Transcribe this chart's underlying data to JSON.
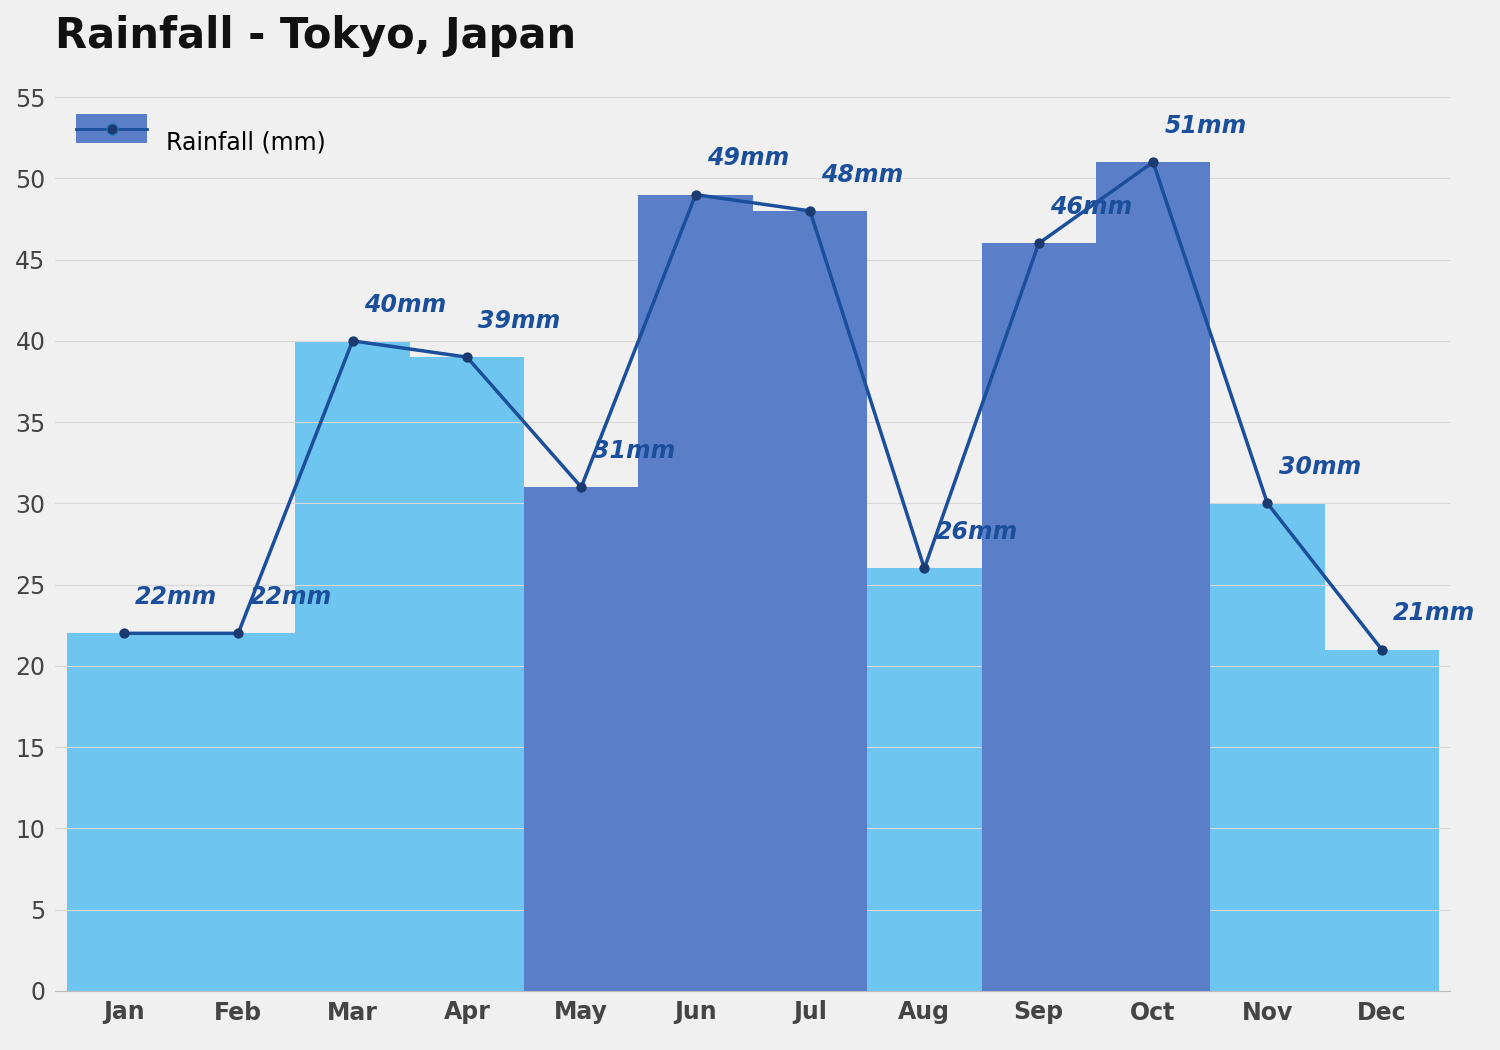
{
  "months": [
    "Jan",
    "Feb",
    "Mar",
    "Apr",
    "May",
    "Jun",
    "Jul",
    "Aug",
    "Sep",
    "Oct",
    "Nov",
    "Dec"
  ],
  "values": [
    22,
    22,
    40,
    39,
    31,
    49,
    48,
    26,
    46,
    51,
    30,
    21
  ],
  "title": "Rainfall - Tokyo, Japan",
  "title_fontsize": 30,
  "title_fontweight": "bold",
  "ylim": [
    0,
    57
  ],
  "yticks": [
    0,
    5,
    10,
    15,
    20,
    25,
    30,
    35,
    40,
    45,
    50,
    55
  ],
  "label_color": "#1B4F9B",
  "label_fontsize": 17,
  "area_color_light": "#6EC6F0",
  "area_color_dark": "#5B7EC9",
  "line_color": "#1B4F9B",
  "dot_color": "#1B3A70",
  "dot_size": 55,
  "background_color": "#f0f0f0",
  "legend_label": "Rainfall (mm)",
  "legend_patch_color": "#5B7EC9",
  "grid_color": "#d8d8d8",
  "axis_tick_fontsize": 17,
  "axis_tick_color": "#444444"
}
